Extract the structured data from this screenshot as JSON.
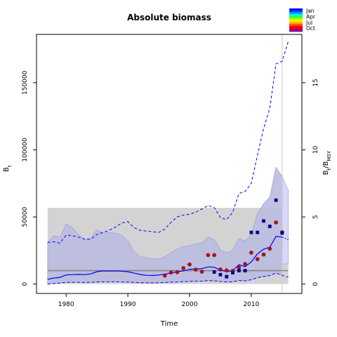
{
  "chart_data": {
    "type": "line",
    "title": "Absolute biomass",
    "xlabel": "Time",
    "ylabel_left": "B",
    "ylabel_left_sub": "t",
    "ylabel_right": "B",
    "ylabel_right_sub": "t",
    "ylabel_right_sep": "/B",
    "ylabel_right_sub2": "MSY",
    "xlim": [
      1975.2,
      2018.2
    ],
    "ylim": [
      -7000,
      186000
    ],
    "right_axis_ratio": 10000,
    "x_ticks": [
      1980,
      1990,
      2000,
      2010
    ],
    "y_ticks": [
      0,
      50000,
      100000,
      150000
    ],
    "y_tick_labels": [
      "0",
      "50000",
      "100000",
      "150000"
    ],
    "right_ticks": [
      0,
      5,
      10,
      15
    ],
    "bmsy_band": {
      "x": [
        1977,
        2016
      ],
      "y": [
        0,
        56800
      ],
      "color": "#d3d3d3"
    },
    "bmsy_line": {
      "y": 10000,
      "color": "#808080"
    },
    "vline_x": 2015,
    "colors": {
      "ci": "#bbbbe0",
      "ci_pred": "#d8d8f8",
      "line": "#0000ff",
      "point": "#cc0000",
      "square": "#00008b"
    },
    "x": [
      1977,
      1978,
      1979,
      1980,
      1981,
      1982,
      1983,
      1984,
      1985,
      1986,
      1987,
      1988,
      1989,
      1990,
      1991,
      1992,
      1993,
      1994,
      1995,
      1996,
      1997,
      1998,
      1999,
      2000,
      2001,
      2002,
      2003,
      2004,
      2005,
      2006,
      2007,
      2008,
      2009,
      2010,
      2011,
      2012,
      2013,
      2014,
      2015
    ],
    "series": [
      {
        "role": "estimate",
        "values": [
          3500,
          4500,
          5000,
          6800,
          7000,
          7200,
          7000,
          7600,
          9200,
          9800,
          9700,
          9800,
          9600,
          9200,
          8200,
          7200,
          6500,
          6400,
          6700,
          7500,
          8200,
          9200,
          9800,
          11000,
          11300,
          11500,
          12800,
          12500,
          10500,
          9200,
          10000,
          14500,
          13000,
          16500,
          22500,
          26000,
          27500,
          35500,
          35000
        ]
      },
      {
        "role": "upper-ci",
        "values": [
          31000,
          36000,
          35000,
          44800,
          42000,
          37000,
          33000,
          34000,
          40500,
          38000,
          38500,
          37800,
          36500,
          32000,
          24000,
          20500,
          19500,
          19000,
          18500,
          20500,
          23500,
          26000,
          28000,
          28500,
          30000,
          30500,
          35000,
          33000,
          25500,
          23500,
          25000,
          34000,
          32000,
          37000,
          52500,
          60000,
          65000,
          87000,
          80000
        ]
      },
      {
        "role": "lower-ci",
        "values": [
          0,
          500,
          800,
          1200,
          1300,
          1300,
          1200,
          1300,
          1600,
          1700,
          1700,
          1700,
          1600,
          1500,
          1200,
          1000,
          900,
          900,
          1000,
          1200,
          1400,
          1600,
          1800,
          2000,
          2100,
          2200,
          2600,
          2400,
          1900,
          1600,
          1700,
          2700,
          2400,
          3200,
          4800,
          5600,
          6300,
          8200,
          6500
        ]
      },
      {
        "role": "forecast-upper-dashed",
        "values": [
          31000,
          31500,
          30500,
          36500,
          36000,
          35000,
          33500,
          33500,
          37000,
          38500,
          40000,
          42500,
          45500,
          46500,
          42000,
          40000,
          39500,
          39000,
          38500,
          41000,
          46000,
          50000,
          51500,
          52000,
          53500,
          56000,
          58500,
          57000,
          49500,
          48000,
          53500,
          67500,
          69000,
          75000,
          96000,
          116000,
          131000,
          164000,
          166000
        ]
      },
      {
        "role": "forecast-lower-dashed",
        "values": [
          0,
          500,
          800,
          1200,
          1300,
          1300,
          1200,
          1300,
          1600,
          1700,
          1700,
          1700,
          1600,
          1500,
          1200,
          1000,
          900,
          900,
          1000,
          1200,
          1400,
          1600,
          1800,
          2000,
          2100,
          2200,
          2600,
          2400,
          1900,
          1600,
          1700,
          2700,
          2400,
          3200,
          4800,
          5600,
          6300,
          8200,
          6500
        ]
      }
    ],
    "forecast": {
      "x": [
        2015,
        2016
      ],
      "estimate": [
        35000,
        33000
      ],
      "upper": [
        80000,
        70000
      ],
      "lower": [
        15000,
        15000
      ],
      "upper_dashed": [
        166000,
        181000
      ],
      "lower_dashed": [
        6500,
        5200
      ]
    },
    "observed_points": {
      "x": [
        1996,
        1997,
        1998,
        1999,
        2000,
        2001,
        2002,
        2003,
        2004,
        2005,
        2006,
        2007,
        2008,
        2009,
        2010,
        2011,
        2012,
        2013,
        2014,
        2015
      ],
      "y": [
        6300,
        8600,
        8900,
        11900,
        14600,
        10800,
        9200,
        21600,
        21600,
        10900,
        10200,
        9800,
        12400,
        15000,
        23400,
        18600,
        22000,
        26300,
        45900,
        38700
      ]
    },
    "survey_squares": {
      "x": [
        2004,
        2005,
        2006,
        2007,
        2008,
        2009,
        2010,
        2011,
        2012,
        2013,
        2014,
        2015
      ],
      "y": [
        9000,
        7000,
        5500,
        8500,
        10000,
        10000,
        38500,
        38500,
        47000,
        43000,
        62500,
        38000
      ]
    },
    "legend": {
      "labels": [
        "Jan",
        "Apr",
        "Jul",
        "Oct"
      ],
      "placement": "top-right"
    }
  }
}
